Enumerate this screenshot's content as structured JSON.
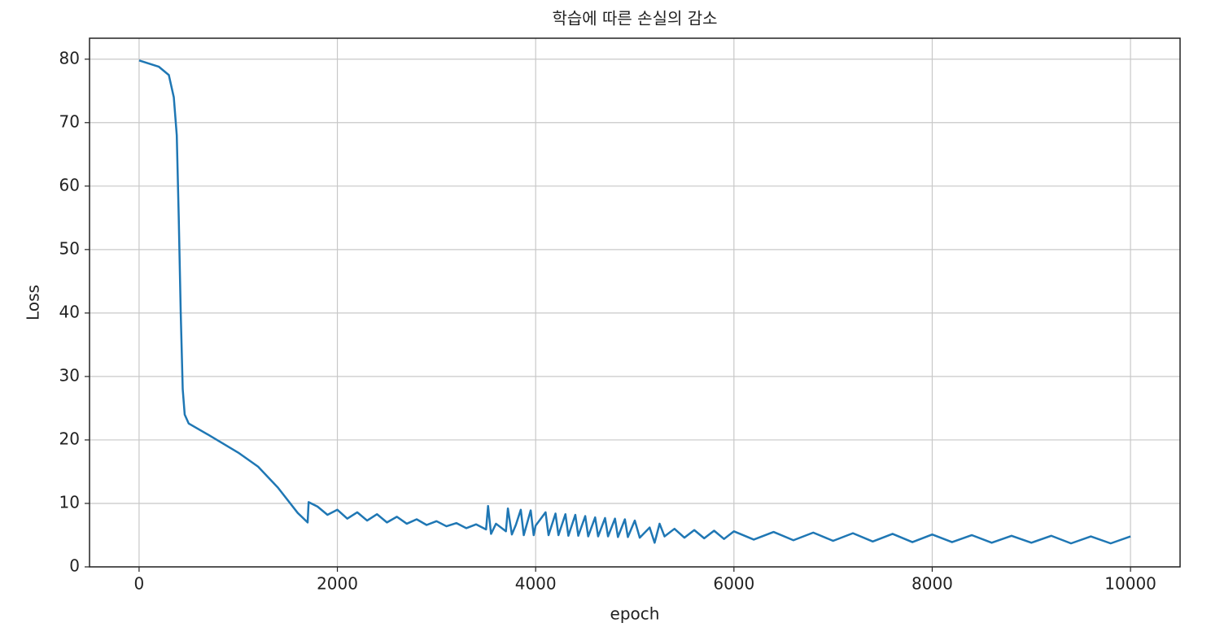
{
  "chart_data": {
    "type": "line",
    "title": "학습에 따른 손실의 감소",
    "x_label": "epoch",
    "y_label": "Loss",
    "xlim": [
      -500,
      10500
    ],
    "ylim": [
      0,
      83.3
    ],
    "xticks": [
      0,
      2000,
      4000,
      6000,
      8000,
      10000
    ],
    "yticks": [
      0,
      10,
      20,
      30,
      40,
      50,
      60,
      70,
      80
    ],
    "grid": true,
    "x": [
      0,
      100,
      200,
      300,
      350,
      380,
      400,
      420,
      440,
      460,
      500,
      700,
      1000,
      1200,
      1400,
      1600,
      1700,
      1710,
      1800,
      1900,
      2000,
      2100,
      2200,
      2300,
      2400,
      2500,
      2600,
      2700,
      2800,
      2900,
      3000,
      3100,
      3200,
      3300,
      3400,
      3500,
      3520,
      3550,
      3600,
      3700,
      3720,
      3760,
      3800,
      3850,
      3880,
      3950,
      3980,
      4000,
      4100,
      4130,
      4200,
      4230,
      4300,
      4330,
      4400,
      4430,
      4500,
      4530,
      4600,
      4630,
      4700,
      4730,
      4800,
      4830,
      4900,
      4930,
      5000,
      5050,
      5150,
      5200,
      5250,
      5300,
      5400,
      5500,
      5600,
      5700,
      5800,
      5900,
      6000,
      6200,
      6400,
      6600,
      6800,
      7000,
      7200,
      7400,
      7600,
      7800,
      8000,
      8200,
      8400,
      8600,
      8800,
      9000,
      9200,
      9400,
      9600,
      9800,
      10000
    ],
    "series": [
      {
        "name": "Loss",
        "color": "#1f77b4",
        "values": [
          79.8,
          79.3,
          78.8,
          77.5,
          74,
          68,
          55,
          40,
          28,
          24,
          22.6,
          20.8,
          18,
          15.8,
          12.5,
          8.5,
          7,
          10.2,
          9.5,
          8.2,
          9.0,
          7.6,
          8.6,
          7.3,
          8.3,
          7.0,
          7.9,
          6.8,
          7.5,
          6.6,
          7.2,
          6.4,
          6.9,
          6.1,
          6.7,
          5.9,
          9.6,
          5.2,
          6.8,
          5.6,
          9.2,
          5.1,
          6.6,
          9.0,
          5.0,
          8.9,
          5.0,
          6.5,
          8.6,
          5.0,
          8.4,
          5.0,
          8.3,
          4.9,
          8.2,
          4.9,
          8.0,
          4.8,
          7.8,
          4.8,
          7.7,
          4.8,
          7.6,
          4.7,
          7.5,
          4.7,
          7.3,
          4.6,
          6.2,
          3.8,
          6.8,
          4.8,
          6.0,
          4.6,
          5.8,
          4.5,
          5.7,
          4.4,
          5.6,
          4.3,
          5.5,
          4.2,
          5.4,
          4.1,
          5.3,
          4.0,
          5.2,
          3.9,
          5.1,
          3.9,
          5.0,
          3.8,
          4.9,
          3.8,
          4.9,
          3.7,
          4.8,
          3.7,
          4.8
        ]
      }
    ]
  }
}
